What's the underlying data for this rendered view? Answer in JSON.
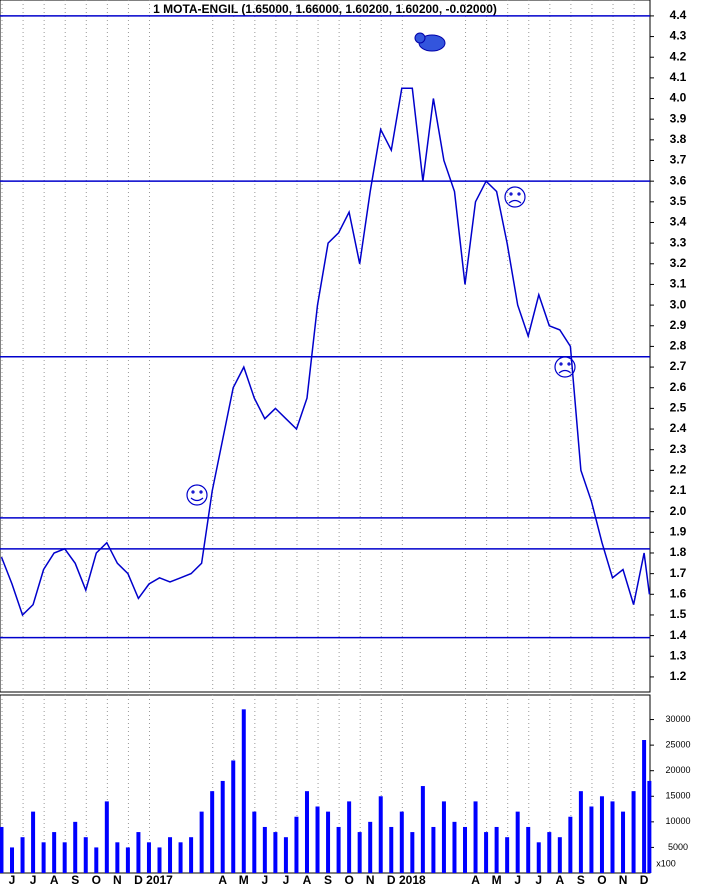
{
  "chart_data": [
    {
      "type": "line",
      "title": "1 MOTA-ENGIL  (1.65000, 1.66000, 1.60200, 1.60200, -0.02000)",
      "color": "#0000cc",
      "x": [
        6.0,
        6.5,
        7.0,
        7.5,
        8.0,
        8.5,
        9.0,
        9.5,
        10.0,
        10.5,
        11.0,
        11.5,
        12.0,
        12.5,
        13.0,
        13.5,
        14.0,
        14.5,
        15.0,
        15.5,
        16.0,
        16.5,
        17.0,
        17.5,
        18.0,
        18.5,
        19.0,
        19.5,
        20.0,
        20.5,
        21.0,
        21.5,
        22.0,
        22.5,
        23.0,
        23.5,
        24.0,
        24.5,
        25.0,
        25.5,
        26.0,
        26.5,
        27.0,
        27.5,
        28.0,
        28.5,
        29.0,
        29.5,
        30.0,
        30.5,
        31.0,
        31.5,
        32.0,
        32.5,
        33.0,
        33.5,
        34.0,
        34.5,
        35.0,
        35.5,
        36.0,
        36.5,
        36.75
      ],
      "values": [
        1.78,
        1.65,
        1.5,
        1.55,
        1.72,
        1.8,
        1.82,
        1.75,
        1.62,
        1.8,
        1.85,
        1.75,
        1.7,
        1.58,
        1.65,
        1.68,
        1.66,
        1.68,
        1.7,
        1.75,
        2.1,
        2.35,
        2.6,
        2.7,
        2.55,
        2.45,
        2.5,
        2.45,
        2.4,
        2.55,
        3.0,
        3.3,
        3.35,
        3.45,
        3.2,
        3.55,
        3.85,
        3.75,
        4.05,
        4.05,
        3.6,
        4.0,
        3.7,
        3.55,
        3.1,
        3.5,
        3.6,
        3.55,
        3.3,
        3.0,
        2.85,
        3.05,
        2.9,
        2.88,
        2.8,
        2.2,
        2.05,
        1.85,
        1.68,
        1.72,
        1.55,
        1.8,
        1.6
      ],
      "xlim": [
        5.93,
        36.78
      ],
      "ylim": [
        1.127,
        4.477
      ],
      "hlines": [
        4.4,
        3.6,
        2.75,
        1.97,
        1.82,
        1.39
      ],
      "yticks": [
        1.2,
        1.3,
        1.4,
        1.5,
        1.6,
        1.7,
        1.8,
        1.9,
        {
          "value": 2,
          "label": "2.0"
        },
        2.1,
        2.2,
        2.3,
        2.4,
        2.5,
        2.6,
        2.7,
        2.8,
        2.9,
        {
          "value": 3,
          "label": "3.0"
        },
        3.1,
        3.2,
        3.3,
        3.4,
        3.5,
        3.6,
        3.7,
        3.8,
        3.9,
        {
          "value": 4,
          "label": "4.0"
        },
        4.1,
        4.2,
        4.3,
        4.4
      ],
      "xticks": [
        {
          "value": 6.5,
          "label": "J"
        },
        {
          "value": 7.5,
          "label": "J"
        },
        {
          "value": 8.5,
          "label": "A"
        },
        {
          "value": 9.5,
          "label": "S"
        },
        {
          "value": 10.5,
          "label": "O"
        },
        {
          "value": 11.5,
          "label": "N"
        },
        {
          "value": 12.5,
          "label": "D"
        },
        {
          "value": 13.5,
          "label": "2017"
        },
        {
          "value": 16.5,
          "label": "A"
        },
        {
          "value": 17.5,
          "label": "M"
        },
        {
          "value": 18.5,
          "label": "J"
        },
        {
          "value": 19.5,
          "label": "J"
        },
        {
          "value": 20.5,
          "label": "A"
        },
        {
          "value": 21.5,
          "label": "S"
        },
        {
          "value": 22.5,
          "label": "O"
        },
        {
          "value": 23.5,
          "label": "N"
        },
        {
          "value": 24.5,
          "label": "D"
        },
        {
          "value": 25.5,
          "label": "2018"
        },
        {
          "value": 28.5,
          "label": "A"
        },
        {
          "value": 29.5,
          "label": "M"
        },
        {
          "value": 30.5,
          "label": "J"
        },
        {
          "value": 31.5,
          "label": "J"
        },
        {
          "value": 32.5,
          "label": "A"
        },
        {
          "value": 33.5,
          "label": "S"
        },
        {
          "value": 34.5,
          "label": "O"
        },
        {
          "value": 35.5,
          "label": "N"
        },
        {
          "value": 36.5,
          "label": "D"
        }
      ]
    },
    {
      "type": "bar",
      "color": "#0000ff",
      "unit_label": "x100",
      "x": [
        6.0,
        6.5,
        7.0,
        7.5,
        8.0,
        8.5,
        9.0,
        9.5,
        10.0,
        10.5,
        11.0,
        11.5,
        12.0,
        12.5,
        13.0,
        13.5,
        14.0,
        14.5,
        15.0,
        15.5,
        16.0,
        16.5,
        17.0,
        17.5,
        18.0,
        18.5,
        19.0,
        19.5,
        20.0,
        20.5,
        21.0,
        21.5,
        22.0,
        22.5,
        23.0,
        23.5,
        24.0,
        24.5,
        25.0,
        25.5,
        26.0,
        26.5,
        27.0,
        27.5,
        28.0,
        28.5,
        29.0,
        29.5,
        30.0,
        30.5,
        31.0,
        31.5,
        32.0,
        32.5,
        33.0,
        33.5,
        34.0,
        34.5,
        35.0,
        35.5,
        36.0,
        36.5,
        36.75
      ],
      "values": [
        9000,
        5000,
        7000,
        12000,
        6000,
        8000,
        6000,
        10000,
        7000,
        5000,
        14000,
        6000,
        5000,
        8000,
        6000,
        5000,
        7000,
        6000,
        7000,
        12000,
        16000,
        18000,
        22000,
        32000,
        12000,
        9000,
        8000,
        7000,
        11000,
        16000,
        13000,
        12000,
        9000,
        14000,
        8000,
        10000,
        15000,
        9000,
        12000,
        8000,
        17000,
        9000,
        14000,
        10000,
        9000,
        14000,
        8000,
        9000,
        7000,
        12000,
        9000,
        6000,
        8000,
        7000,
        11000,
        16000,
        13000,
        15000,
        14000,
        12000,
        16000,
        26000,
        18000
      ],
      "xlim": [
        5.93,
        36.78
      ],
      "ylim": [
        0,
        34800
      ],
      "yticks": [
        5000,
        10000,
        15000,
        20000,
        25000,
        30000
      ]
    }
  ]
}
